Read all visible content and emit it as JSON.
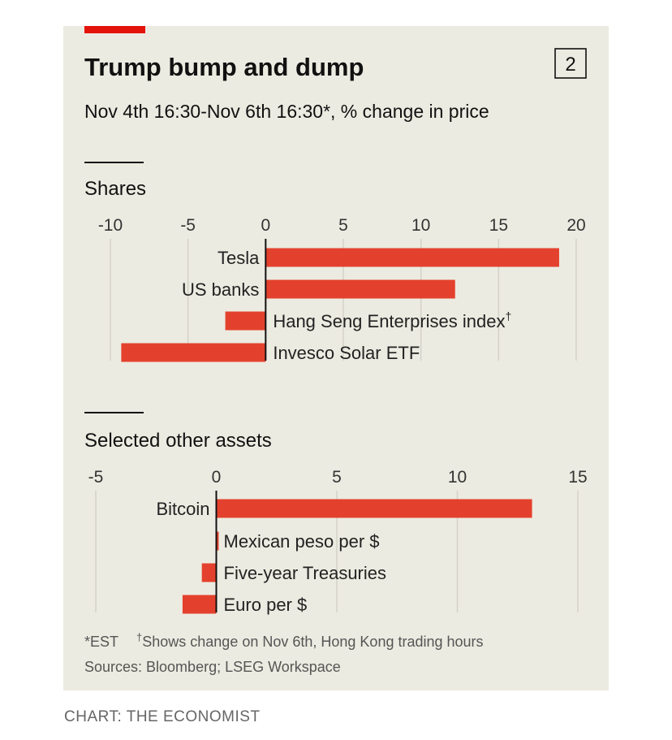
{
  "chart_number": "2",
  "colors": {
    "bar": "#e3412d",
    "accent": "#e3120b",
    "background": "#ecebe1",
    "grid": "#d3d2c9"
  },
  "chart_data": [
    {
      "type": "bar",
      "orientation": "horizontal",
      "title": "Trump bump and dump",
      "subtitle": "Nov 4th 16:30-Nov 6th 16:30*, % change in price",
      "panel_title": "Shares",
      "categories": [
        "Tesla",
        "US banks",
        "Hang Seng Enterprises index",
        "Invesco Solar ETF"
      ],
      "category_suffixes": [
        "",
        "",
        "†",
        ""
      ],
      "values": [
        18.9,
        12.2,
        -2.6,
        -9.3
      ],
      "xlim": [
        -10,
        20
      ],
      "ticks": [
        -10,
        -5,
        0,
        5,
        10,
        15,
        20
      ],
      "tick_labels": [
        "-10",
        "-5",
        "0",
        "5",
        "10",
        "15",
        "20"
      ],
      "grid": true
    },
    {
      "type": "bar",
      "orientation": "horizontal",
      "panel_title": "Selected other assets",
      "categories": [
        "Bitcoin",
        "Mexican peso per $",
        "Five-year Treasuries",
        "Euro per $"
      ],
      "category_suffixes": [
        "",
        "",
        "",
        ""
      ],
      "values": [
        13.1,
        0.1,
        -0.6,
        -1.4
      ],
      "xlim": [
        -5,
        15
      ],
      "ticks": [
        -5,
        0,
        5,
        10,
        15
      ],
      "tick_labels": [
        "-5",
        "0",
        "5",
        "10",
        "15"
      ],
      "grid": true
    }
  ],
  "footnote_est": "*EST",
  "footnote_dagger_mark": "†",
  "footnote_dagger": "Shows change on Nov 6th, Hong Kong trading hours",
  "sources": "Sources: Bloomberg; LSEG Workspace",
  "credit": "CHART: THE ECONOMIST"
}
